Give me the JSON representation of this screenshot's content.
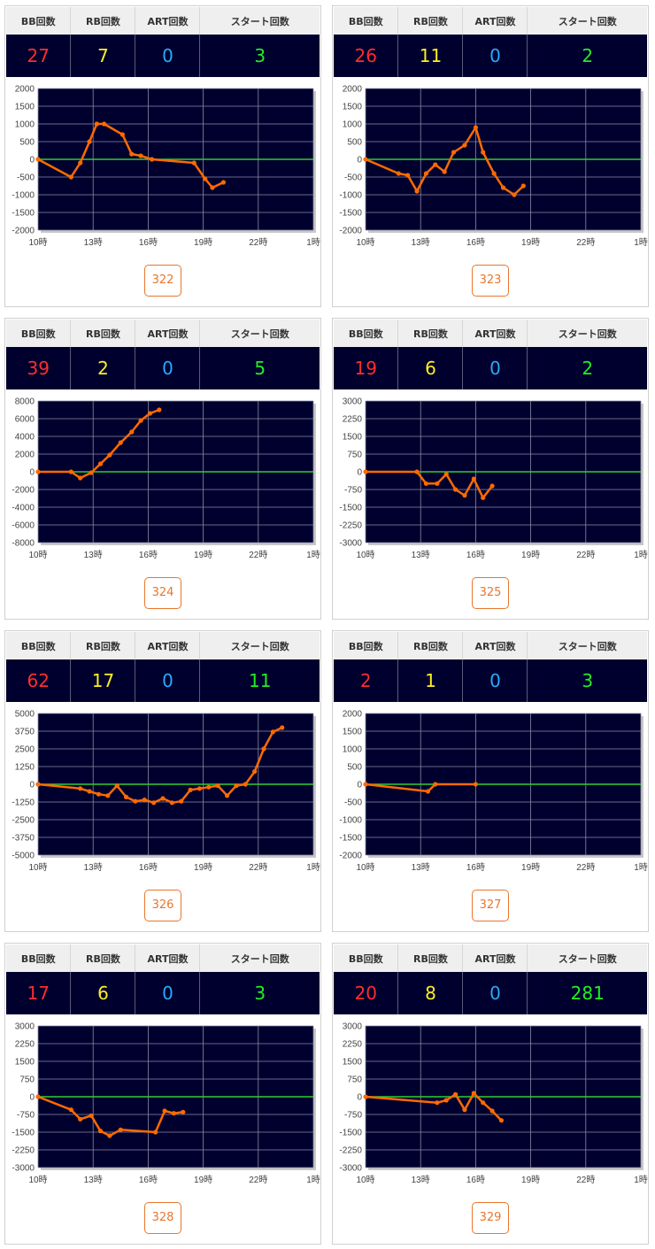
{
  "header_labels": {
    "bb": "BB回数",
    "rb": "RB回数",
    "art": "ART回数",
    "start": "スタート回数"
  },
  "x_tick_labels": [
    "10時",
    "13時",
    "16時",
    "19時",
    "22時",
    "1時"
  ],
  "colors": {
    "line": "#ff6a00",
    "zero_line": "#33cc33",
    "plot_bg": "#00002e",
    "grid": "#8a8aa8",
    "number_button": "#e8762c",
    "bb": "#ff2d2d",
    "rb": "#ffee22",
    "art": "#2aa8ff",
    "start": "#22ee22"
  },
  "machines": [
    {
      "number": "322",
      "bb": "27",
      "rb": "7",
      "art": "0",
      "start": "3"
    },
    {
      "number": "323",
      "bb": "26",
      "rb": "11",
      "art": "0",
      "start": "2"
    },
    {
      "number": "324",
      "bb": "39",
      "rb": "2",
      "art": "0",
      "start": "5"
    },
    {
      "number": "325",
      "bb": "19",
      "rb": "6",
      "art": "0",
      "start": "2"
    },
    {
      "number": "326",
      "bb": "62",
      "rb": "17",
      "art": "0",
      "start": "11"
    },
    {
      "number": "327",
      "bb": "2",
      "rb": "1",
      "art": "0",
      "start": "3"
    },
    {
      "number": "328",
      "bb": "17",
      "rb": "6",
      "art": "0",
      "start": "3"
    },
    {
      "number": "329",
      "bb": "20",
      "rb": "8",
      "art": "0",
      "start": "281"
    }
  ],
  "chart_data": [
    {
      "type": "line",
      "x_unit": "hour",
      "xlim": [
        10,
        25
      ],
      "ylim": [
        -2000,
        2000
      ],
      "y_ticks": [
        "2000",
        "1500",
        "1000",
        "500",
        "0",
        "-500",
        "-1000",
        "-1500",
        "-2000"
      ],
      "points": [
        [
          10,
          0
        ],
        [
          11.8,
          -500
        ],
        [
          12.3,
          -100
        ],
        [
          12.8,
          500
        ],
        [
          13.2,
          1000
        ],
        [
          13.6,
          1000
        ],
        [
          14.6,
          700
        ],
        [
          15.1,
          150
        ],
        [
          15.6,
          100
        ],
        [
          16.2,
          0
        ],
        [
          18.5,
          -100
        ],
        [
          19.1,
          -550
        ],
        [
          19.5,
          -800
        ],
        [
          20.1,
          -650
        ]
      ]
    },
    {
      "type": "line",
      "x_unit": "hour",
      "xlim": [
        10,
        25
      ],
      "ylim": [
        -2000,
        2000
      ],
      "y_ticks": [
        "2000",
        "1500",
        "1000",
        "500",
        "0",
        "-500",
        "-1000",
        "-1500",
        "-2000"
      ],
      "points": [
        [
          10,
          0
        ],
        [
          11.8,
          -400
        ],
        [
          12.3,
          -450
        ],
        [
          12.8,
          -900
        ],
        [
          13.3,
          -400
        ],
        [
          13.8,
          -150
        ],
        [
          14.3,
          -350
        ],
        [
          14.8,
          200
        ],
        [
          15.4,
          400
        ],
        [
          16,
          900
        ],
        [
          16.4,
          200
        ],
        [
          17,
          -400
        ],
        [
          17.5,
          -800
        ],
        [
          18.1,
          -1000
        ],
        [
          18.6,
          -750
        ]
      ]
    },
    {
      "type": "line",
      "x_unit": "hour",
      "xlim": [
        10,
        25
      ],
      "ylim": [
        -8000,
        8000
      ],
      "y_ticks": [
        "8000",
        "6000",
        "4000",
        "2000",
        "0",
        "-2000",
        "-4000",
        "-6000",
        "-8000"
      ],
      "points": [
        [
          10,
          0
        ],
        [
          11.8,
          0
        ],
        [
          12.3,
          -700
        ],
        [
          12.9,
          -100
        ],
        [
          13.4,
          900
        ],
        [
          13.9,
          1900
        ],
        [
          14.5,
          3300
        ],
        [
          15.1,
          4500
        ],
        [
          15.6,
          5800
        ],
        [
          16.1,
          6600
        ],
        [
          16.6,
          7000
        ]
      ]
    },
    {
      "type": "line",
      "x_unit": "hour",
      "xlim": [
        10,
        25
      ],
      "ylim": [
        -3000,
        3000
      ],
      "y_ticks": [
        "3000",
        "2250",
        "1500",
        "750",
        "0",
        "-750",
        "-1500",
        "-2250",
        "-3000"
      ],
      "points": [
        [
          10,
          0
        ],
        [
          12.8,
          0
        ],
        [
          13.3,
          -500
        ],
        [
          13.9,
          -500
        ],
        [
          14.4,
          -100
        ],
        [
          14.9,
          -750
        ],
        [
          15.4,
          -1000
        ],
        [
          15.9,
          -300
        ],
        [
          16.4,
          -1100
        ],
        [
          16.9,
          -600
        ]
      ]
    },
    {
      "type": "line",
      "x_unit": "hour",
      "xlim": [
        10,
        25
      ],
      "ylim": [
        -5000,
        5000
      ],
      "y_ticks": [
        "5000",
        "3750",
        "2500",
        "1250",
        "0",
        "-1250",
        "-2500",
        "-3750",
        "-5000"
      ],
      "points": [
        [
          10,
          0
        ],
        [
          12.3,
          -300
        ],
        [
          12.8,
          -500
        ],
        [
          13.3,
          -700
        ],
        [
          13.8,
          -800
        ],
        [
          14.3,
          -100
        ],
        [
          14.8,
          -900
        ],
        [
          15.3,
          -1200
        ],
        [
          15.8,
          -1100
        ],
        [
          16.3,
          -1300
        ],
        [
          16.8,
          -1000
        ],
        [
          17.3,
          -1300
        ],
        [
          17.8,
          -1200
        ],
        [
          18.3,
          -400
        ],
        [
          18.8,
          -300
        ],
        [
          19.3,
          -200
        ],
        [
          19.8,
          -100
        ],
        [
          20.3,
          -800
        ],
        [
          20.8,
          -100
        ],
        [
          21.3,
          0
        ],
        [
          21.8,
          900
        ],
        [
          22.3,
          2500
        ],
        [
          22.8,
          3700
        ],
        [
          23.3,
          4000
        ]
      ]
    },
    {
      "type": "line",
      "x_unit": "hour",
      "xlim": [
        10,
        25
      ],
      "ylim": [
        -2000,
        2000
      ],
      "y_ticks": [
        "2000",
        "1500",
        "1000",
        "500",
        "0",
        "-500",
        "-1000",
        "-1500",
        "-2000"
      ],
      "points": [
        [
          10,
          0
        ],
        [
          13.4,
          -200
        ],
        [
          13.8,
          0
        ],
        [
          16,
          0
        ]
      ]
    },
    {
      "type": "line",
      "x_unit": "hour",
      "xlim": [
        10,
        25
      ],
      "ylim": [
        -3000,
        3000
      ],
      "y_ticks": [
        "3000",
        "2250",
        "1500",
        "750",
        "0",
        "-750",
        "-1500",
        "-2250",
        "-3000"
      ],
      "points": [
        [
          10,
          0
        ],
        [
          11.8,
          -550
        ],
        [
          12.3,
          -950
        ],
        [
          12.9,
          -800
        ],
        [
          13.4,
          -1450
        ],
        [
          13.9,
          -1650
        ],
        [
          14.5,
          -1400
        ],
        [
          16.4,
          -1500
        ],
        [
          16.9,
          -600
        ],
        [
          17.4,
          -700
        ],
        [
          17.9,
          -650
        ]
      ]
    },
    {
      "type": "line",
      "x_unit": "hour",
      "xlim": [
        10,
        25
      ],
      "ylim": [
        -3000,
        3000
      ],
      "y_ticks": [
        "3000",
        "2250",
        "1500",
        "750",
        "0",
        "-750",
        "-1500",
        "-2250",
        "-3000"
      ],
      "points": [
        [
          10,
          0
        ],
        [
          13.9,
          -250
        ],
        [
          14.4,
          -150
        ],
        [
          14.9,
          100
        ],
        [
          15.4,
          -550
        ],
        [
          15.9,
          150
        ],
        [
          16.4,
          -250
        ],
        [
          16.9,
          -600
        ],
        [
          17.4,
          -1000
        ]
      ]
    }
  ]
}
